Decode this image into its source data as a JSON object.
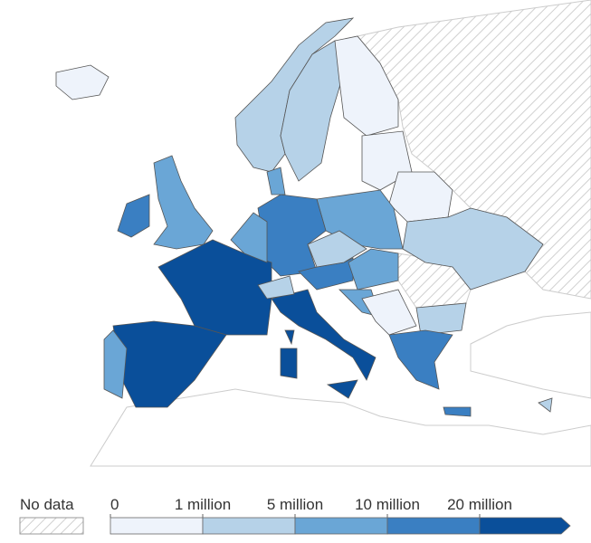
{
  "legend": {
    "no_data_label": "No data",
    "ticks": [
      0,
      {
        "value": 1000000,
        "label": "1 million"
      },
      {
        "value": 5000000,
        "label": "5 million"
      },
      {
        "value": 10000000,
        "label": "10 million"
      },
      {
        "value": 20000000,
        "label": "20 million"
      }
    ],
    "colors": [
      "#eef3fb",
      "#b6d2e8",
      "#6aa6d6",
      "#3a7fc2",
      "#0a4f9a"
    ]
  }
}
